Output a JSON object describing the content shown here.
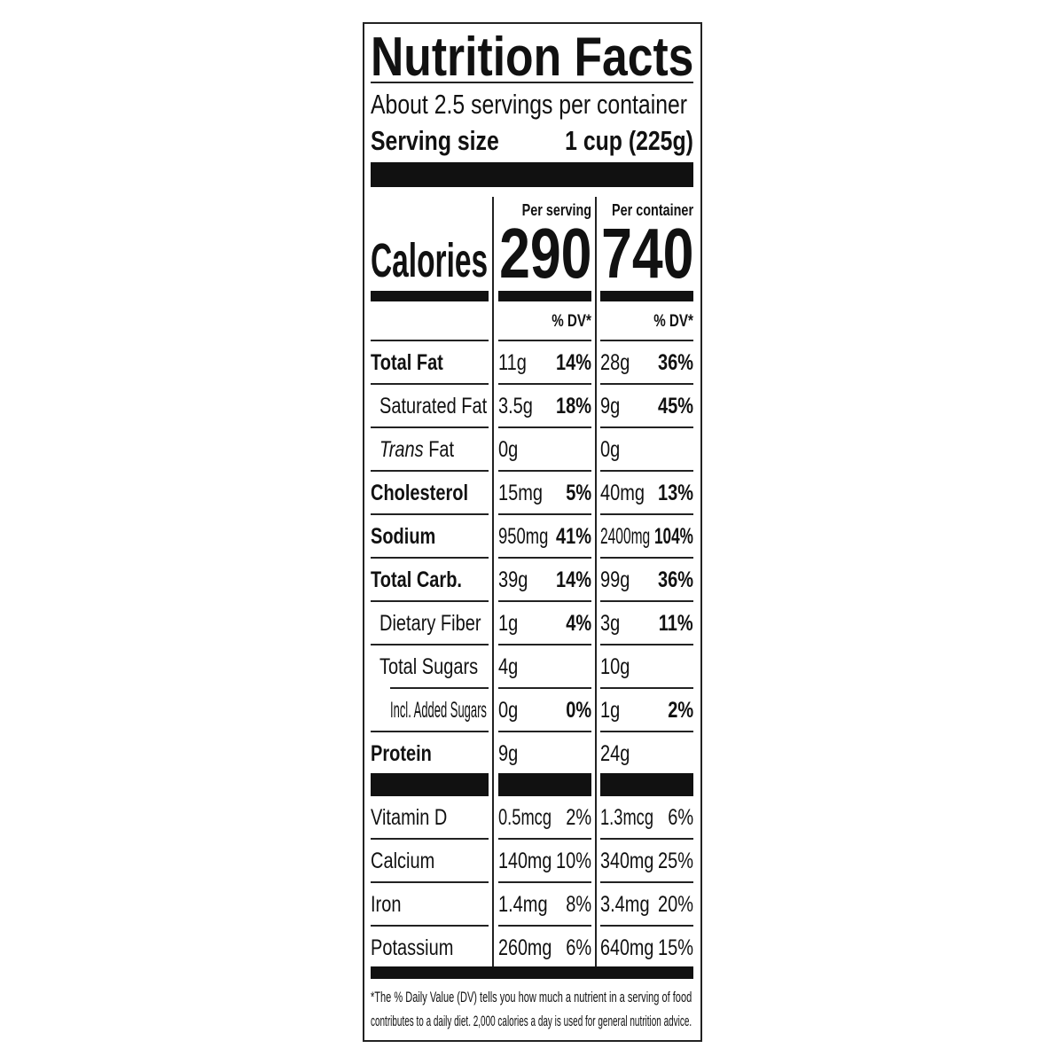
{
  "title": "Nutrition Facts",
  "servings_per_container": "About 2.5 servings per container",
  "serving_size": {
    "label": "Serving size",
    "value": "1 cup (225g)"
  },
  "columns": [
    {
      "header": "Per serving",
      "calories": "290",
      "dv_header": "% DV*"
    },
    {
      "header": "Per container",
      "calories": "740",
      "dv_header": "% DV*"
    }
  ],
  "calories_label": "Calories",
  "nutrients": [
    {
      "label": "Total Fat",
      "bold": true,
      "indent": 0,
      "serving": {
        "amount": "11g",
        "dv": "14%"
      },
      "container": {
        "amount": "28g",
        "dv": "36%"
      }
    },
    {
      "label": "Saturated Fat",
      "bold": false,
      "indent": 1,
      "serving": {
        "amount": "3.5g",
        "dv": "18%"
      },
      "container": {
        "amount": "9g",
        "dv": "45%"
      }
    },
    {
      "label": "Trans Fat",
      "italic_first_word": true,
      "bold": false,
      "indent": 1,
      "serving": {
        "amount": "0g",
        "dv": ""
      },
      "container": {
        "amount": "0g",
        "dv": ""
      }
    },
    {
      "label": "Cholesterol",
      "bold": true,
      "indent": 0,
      "serving": {
        "amount": "15mg",
        "dv": "5%"
      },
      "container": {
        "amount": "40mg",
        "dv": "13%"
      }
    },
    {
      "label": "Sodium",
      "bold": true,
      "indent": 0,
      "serving": {
        "amount": "950mg",
        "dv": "41%"
      },
      "container": {
        "amount": "2400mg",
        "dv": "104%"
      }
    },
    {
      "label": "Total Carb.",
      "bold": true,
      "indent": 0,
      "serving": {
        "amount": "39g",
        "dv": "14%"
      },
      "container": {
        "amount": "99g",
        "dv": "36%"
      }
    },
    {
      "label": "Dietary Fiber",
      "bold": false,
      "indent": 1,
      "serving": {
        "amount": "1g",
        "dv": "4%"
      },
      "container": {
        "amount": "3g",
        "dv": "11%"
      }
    },
    {
      "label": "Total Sugars",
      "bold": false,
      "indent": 1,
      "serving": {
        "amount": "4g",
        "dv": ""
      },
      "container": {
        "amount": "10g",
        "dv": ""
      }
    },
    {
      "label": "Incl. Added Sugars",
      "bold": false,
      "indent": 2,
      "serving": {
        "amount": "0g",
        "dv": "0%"
      },
      "container": {
        "amount": "1g",
        "dv": "2%"
      }
    },
    {
      "label": "Protein",
      "bold": true,
      "indent": 0,
      "serving": {
        "amount": "9g",
        "dv": ""
      },
      "container": {
        "amount": "24g",
        "dv": ""
      }
    }
  ],
  "vitamins": [
    {
      "label": "Vitamin D",
      "serving": {
        "amount": "0.5mcg",
        "dv": "2%"
      },
      "container": {
        "amount": "1.3mcg",
        "dv": "6%"
      }
    },
    {
      "label": "Calcium",
      "serving": {
        "amount": "140mg",
        "dv": "10%"
      },
      "container": {
        "amount": "340mg",
        "dv": "25%"
      }
    },
    {
      "label": "Iron",
      "serving": {
        "amount": "1.4mg",
        "dv": "8%"
      },
      "container": {
        "amount": "3.4mg",
        "dv": "20%"
      }
    },
    {
      "label": "Potassium",
      "serving": {
        "amount": "260mg",
        "dv": "6%"
      },
      "container": {
        "amount": "640mg",
        "dv": "15%"
      }
    }
  ],
  "footnote": [
    "*The % Daily Value (DV) tells you how much a nutrient in a serving of food",
    "contributes to a daily diet. 2,000 calories a day is used for general nutrition advice."
  ]
}
